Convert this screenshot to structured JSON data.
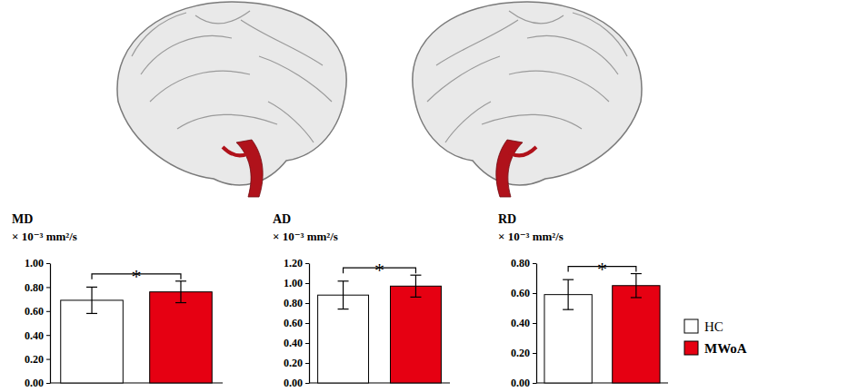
{
  "chart_data": [
    {
      "type": "bar",
      "title": "MD",
      "y_label": "× 10⁻³ mm²/s",
      "ylim": [
        0,
        1.0
      ],
      "yticks": [
        {
          "value": 0,
          "label": "0.00"
        },
        {
          "value": 0.2,
          "label": "0.20"
        },
        {
          "value": 0.4,
          "label": "0.40"
        },
        {
          "value": 0.6,
          "label": "0.60"
        },
        {
          "value": 0.8,
          "label": "0.80"
        },
        {
          "value": 1.0,
          "label": "1.00"
        }
      ],
      "series": [
        {
          "color": "#ffffff",
          "values": [
            0.69
          ],
          "errors": [
            0.11
          ]
        },
        {
          "color": "#e60012",
          "values": [
            0.76
          ],
          "errors": [
            0.09
          ]
        }
      ],
      "annotation": "*"
    },
    {
      "type": "bar",
      "title": "AD",
      "y_label": "× 10⁻³ mm²/s",
      "ylim": [
        0,
        1.2
      ],
      "yticks": [
        {
          "value": 0,
          "label": "0.00"
        },
        {
          "value": 0.2,
          "label": "0.20"
        },
        {
          "value": 0.4,
          "label": "0.40"
        },
        {
          "value": 0.6,
          "label": "0.60"
        },
        {
          "value": 0.8,
          "label": "0.80"
        },
        {
          "value": 1.0,
          "label": "1.00"
        },
        {
          "value": 1.2,
          "label": "1.20"
        }
      ],
      "series": [
        {
          "color": "#ffffff",
          "values": [
            0.88
          ],
          "errors": [
            0.14
          ]
        },
        {
          "color": "#e60012",
          "values": [
            0.97
          ],
          "errors": [
            0.11
          ]
        }
      ],
      "annotation": "*"
    },
    {
      "type": "bar",
      "title": "RD",
      "y_label": "× 10⁻³ mm²/s",
      "ylim": [
        0,
        0.8
      ],
      "yticks": [
        {
          "value": 0,
          "label": "0.00"
        },
        {
          "value": 0.2,
          "label": "0.20"
        },
        {
          "value": 0.4,
          "label": "0.40"
        },
        {
          "value": 0.6,
          "label": "0.60"
        },
        {
          "value": 0.8,
          "label": "0.80"
        }
      ],
      "series": [
        {
          "name": "HC",
          "color": "#ffffff",
          "values": [
            0.59
          ],
          "errors": [
            0.1
          ]
        },
        {
          "name": "MWoA",
          "color": "#e60012",
          "values": [
            0.65
          ],
          "errors": [
            0.08
          ]
        }
      ],
      "annotation": "*",
      "legend": "right"
    }
  ]
}
